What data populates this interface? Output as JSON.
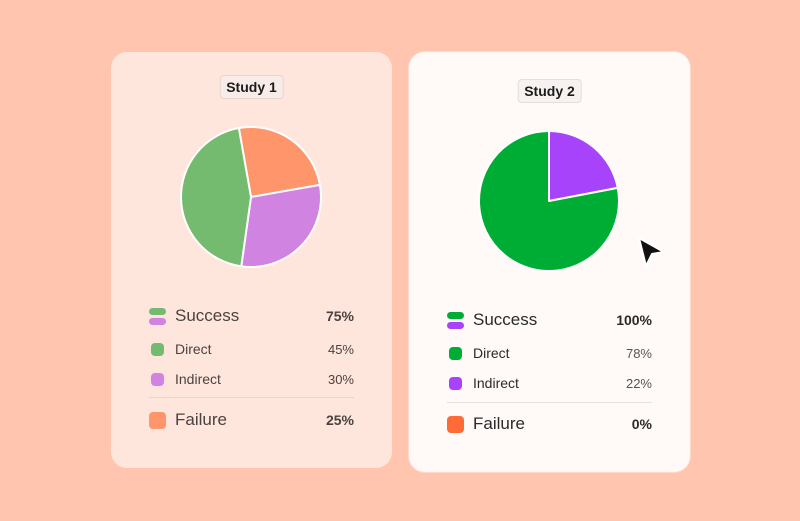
{
  "colors": {
    "study1_success_a": "#74bb70",
    "study1_success_b": "#d083e0",
    "study1_direct": "#74bb70",
    "study1_indirect": "#d083e0",
    "study1_failure": "#ff956a",
    "study2_direct": "#00ad34",
    "study2_indirect": "#a743fb",
    "study2_failure": "#ff6b36"
  },
  "studies": [
    {
      "title": "Study 1",
      "success": {
        "label": "Success",
        "value": "75%"
      },
      "direct": {
        "label": "Direct",
        "value": "45%"
      },
      "indirect": {
        "label": "Indirect",
        "value": "30%"
      },
      "failure": {
        "label": "Failure",
        "value": "25%"
      }
    },
    {
      "title": "Study 2",
      "success": {
        "label": "Success",
        "value": "100%"
      },
      "direct": {
        "label": "Direct",
        "value": "78%"
      },
      "indirect": {
        "label": "Indirect",
        "value": "22%"
      },
      "failure": {
        "label": "Failure",
        "value": "0%"
      }
    }
  ],
  "chart_data": [
    {
      "type": "pie",
      "categories": [
        "Direct",
        "Indirect",
        "Failure"
      ],
      "values": [
        45,
        30,
        25
      ],
      "colors": [
        "#74bb70",
        "#d083e0",
        "#ff956a"
      ],
      "legend": "bottom"
    },
    {
      "type": "pie",
      "categories": [
        "Direct",
        "Indirect",
        "Failure"
      ],
      "values": [
        78,
        22,
        0
      ],
      "colors": [
        "#00ad34",
        "#a743fb",
        "#ff6b36"
      ],
      "legend": "bottom"
    }
  ]
}
